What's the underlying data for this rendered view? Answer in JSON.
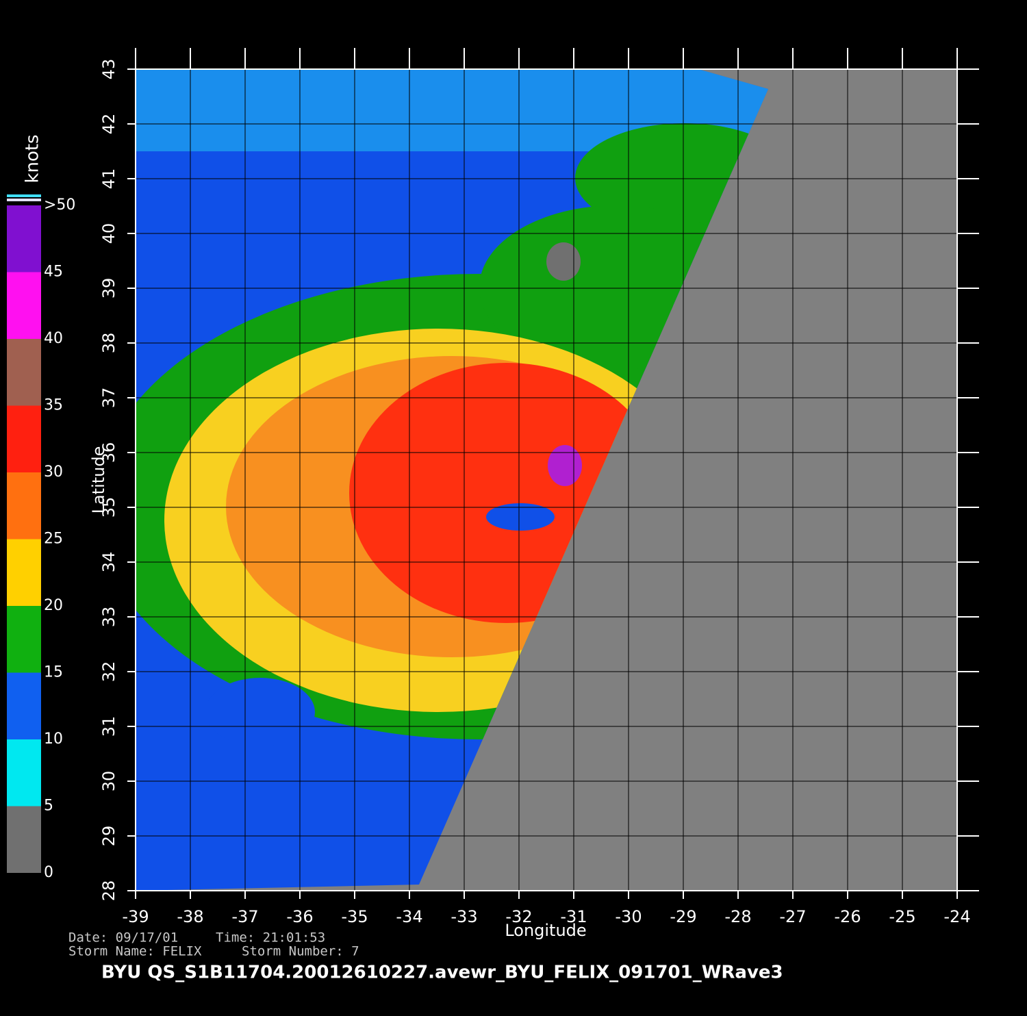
{
  "map": {
    "x_label": "Longitude",
    "y_label": "Latitude",
    "xlim": [
      -39,
      -24
    ],
    "xticks": [
      -39,
      -38,
      -37,
      -36,
      -35,
      -34,
      -33,
      -32,
      -31,
      -30,
      -29,
      -28,
      -27,
      -26,
      -25,
      -24
    ],
    "ylim": [
      28,
      43
    ],
    "yticks": [
      28,
      29,
      30,
      31,
      32,
      33,
      34,
      35,
      36,
      37,
      38,
      39,
      40,
      41,
      42,
      43
    ],
    "grid": true
  },
  "colorbar": {
    "label": "knots",
    "lim": [
      0,
      50
    ],
    "ticks": [
      0,
      5,
      10,
      15,
      20,
      25,
      30,
      35,
      40,
      {
        "value": 50,
        "label": ">50"
      },
      45
    ],
    "colors": [
      "#707070",
      "#00e8f0",
      "#1060f0",
      "#10b010",
      "#ffd000",
      "#ff7010",
      "#ff2010",
      "#a06050",
      "#ff10f0",
      "#8010d0"
    ]
  },
  "footer": {
    "date": "Date: 09/17/01",
    "time": "Time: 21:01:53",
    "storm_name": "Storm Name: FELIX",
    "storm_number": "Storm Number: 7",
    "title": "BYU  QS_S1B11704.20012610227.avewr_BYU_FELIX_091701_WRave3"
  }
}
